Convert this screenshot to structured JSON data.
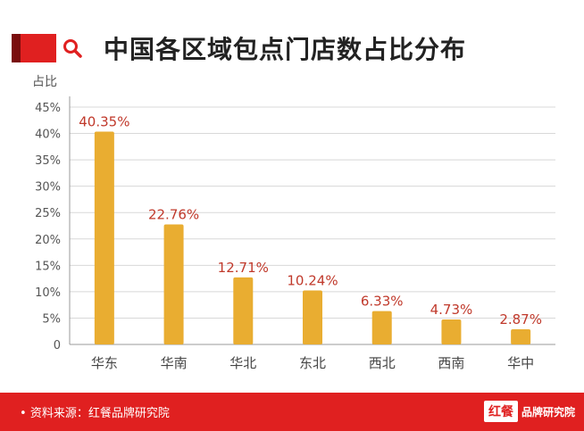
{
  "header": {
    "title": "中国各区域包点门店数占比分布"
  },
  "footer": {
    "source": "资料来源：红餐品牌研究院",
    "logo_mark": "红餐",
    "logo_name": "品牌研究院"
  },
  "colors": {
    "accent": "#e02020",
    "bar": "#e9ad31",
    "value_label": "#c0392b"
  },
  "chart_data": {
    "type": "bar",
    "title": "中国各区域包点门店数占比分布",
    "ylabel": "占比",
    "xlabel": "",
    "categories": [
      "华东",
      "华南",
      "华北",
      "东北",
      "西北",
      "西南",
      "华中"
    ],
    "values": [
      40.35,
      22.76,
      12.71,
      10.24,
      6.33,
      4.73,
      2.87
    ],
    "value_labels": [
      "40.35%",
      "22.76%",
      "12.71%",
      "10.24%",
      "6.33%",
      "4.73%",
      "2.87%"
    ],
    "ylim": [
      0,
      45
    ],
    "yticks": [
      "0",
      "5%",
      "10%",
      "15%",
      "20%",
      "25%",
      "30%",
      "35%",
      "40%",
      "45%"
    ],
    "grid": true,
    "legend": "none"
  }
}
